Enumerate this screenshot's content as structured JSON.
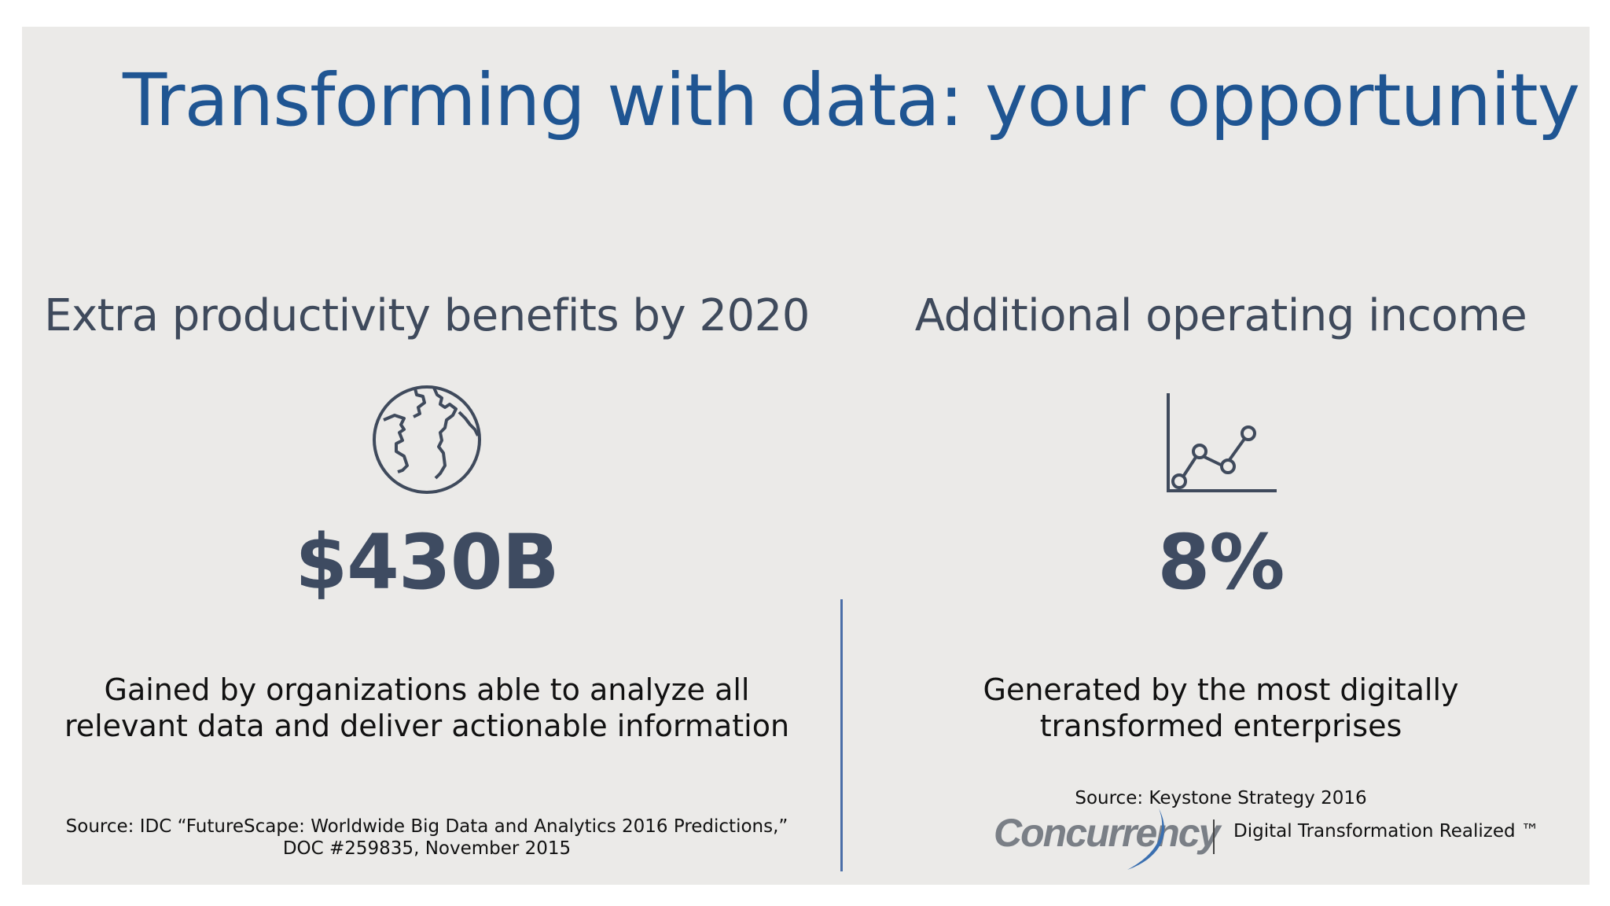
{
  "title": "Transforming with data: your opportunity",
  "left": {
    "heading": "Extra productivity benefits by 2020",
    "icon": "globe-icon",
    "value": "$430B",
    "description_line1": "Gained by organizations able to analyze all",
    "description_line2": "relevant data and deliver actionable information",
    "source_line1": "Source: IDC “FutureScape: Worldwide Big Data and Analytics 2016 Predictions,”",
    "source_line2": "DOC #259835, November 2015"
  },
  "right": {
    "heading": "Additional operating income",
    "icon": "line-chart-icon",
    "value": "8%",
    "description_line1": "Generated by the most digitally",
    "description_line2": "transformed enterprises",
    "source": "Source: Keystone Strategy 2016"
  },
  "brand": {
    "logo_text": "Concurrency",
    "tagline": "Digital Transformation Realized ™"
  },
  "colors": {
    "title": "#1f5592",
    "value": "#3e4b61",
    "divider": "#4a6ea8",
    "background": "#ebeae8"
  }
}
